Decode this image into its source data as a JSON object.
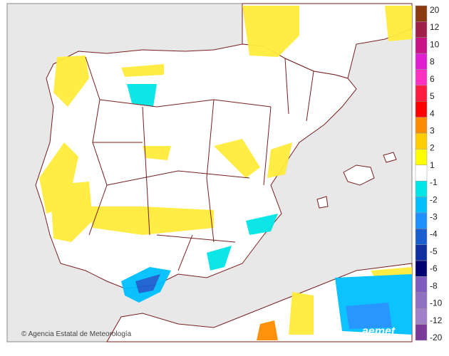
{
  "legend": {
    "labels": [
      "20",
      "12",
      "10",
      "8",
      "6",
      "5",
      "4",
      "3",
      "2",
      "1",
      "-1",
      "-2",
      "-3",
      "-4",
      "-5",
      "-6",
      "-8",
      "-10",
      "-12",
      "-20"
    ],
    "colors": [
      "#8b3a0f",
      "#a1204a",
      "#c71585",
      "#e020d0",
      "#ff30c0",
      "#ff1a40",
      "#ff0000",
      "#ff8c00",
      "#ffcc00",
      "#ffff00",
      "#ffffff",
      "#00e5e5",
      "#00bfff",
      "#1e90ff",
      "#1a5fd0",
      "#1030a0",
      "#000070",
      "#7e5cc0",
      "#9070c0",
      "#a080c8",
      "#7a3a9a"
    ]
  },
  "footer": {
    "credit": "Agencia Estatal de Meteorología",
    "logo": "aemet"
  }
}
